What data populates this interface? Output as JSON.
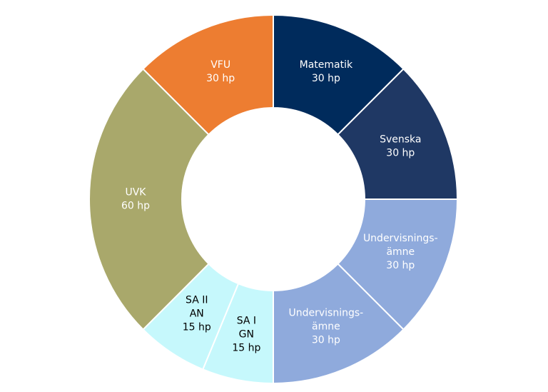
{
  "chart_data": {
    "type": "donut",
    "categories": [
      [
        "Matematik"
      ],
      [
        "Svenska"
      ],
      [
        "Undervisnings-",
        "ämne"
      ],
      [
        "Undervisnings-",
        "ämne"
      ],
      [
        "SA I",
        "GN"
      ],
      [
        "SA II",
        "AN"
      ],
      [
        "UVK"
      ],
      [
        "VFU"
      ]
    ],
    "values": [
      30,
      30,
      30,
      30,
      15,
      15,
      60,
      30
    ],
    "value_labels": [
      "30 hp",
      "30 hp",
      "30 hp",
      "30 hp",
      "15 hp",
      "15 hp",
      "60 hp",
      "30 hp"
    ],
    "colors": [
      "#002b5c",
      "#1f3864",
      "#8faadc",
      "#8faadc",
      "#c6f8fc",
      "#c6f8fc",
      "#a9a86b",
      "#ed7d31"
    ],
    "label_colors": [
      "#ffffff",
      "#ffffff",
      "#ffffff",
      "#ffffff",
      "#000000",
      "#000000",
      "#ffffff",
      "#ffffff"
    ]
  }
}
